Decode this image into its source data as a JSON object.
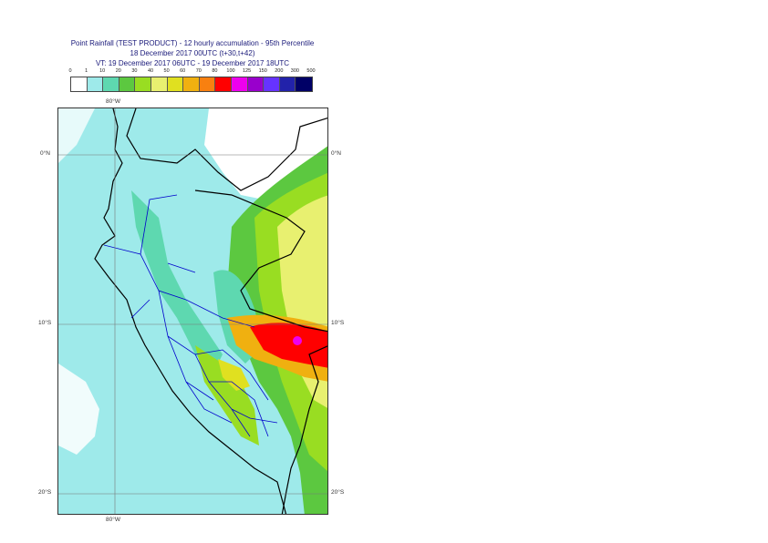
{
  "title": {
    "line1": "Point Rainfall (TEST PRODUCT) - 12 hourly accumulation - 95th Percentile",
    "line2": "18 December 2017 00UTC (t+30,t+42)",
    "line3": "VT: 19 December 2017 06UTC - 19 December 2017 18UTC"
  },
  "legend": {
    "ticks": [
      "0",
      "1",
      "10",
      "20",
      "30",
      "40",
      "50",
      "60",
      "70",
      "80",
      "100",
      "125",
      "150",
      "200",
      "300",
      "500"
    ],
    "colors": [
      "#ffffff",
      "#9eeaea",
      "#5ed8b0",
      "#5cc840",
      "#99dd22",
      "#e8f070",
      "#e0e020",
      "#f0b010",
      "#f88010",
      "#ff0000",
      "#ee00ee",
      "#9900cc",
      "#6633ff",
      "#2222aa",
      "#000066"
    ]
  },
  "map": {
    "lat_labels": [
      "0°N",
      "10°S",
      "20°S"
    ],
    "lon_label": "80°W",
    "colors": {
      "sea": "#9eeaea",
      "land": "#ffffff",
      "coast": "#000000",
      "regions": "#0000cc"
    }
  }
}
